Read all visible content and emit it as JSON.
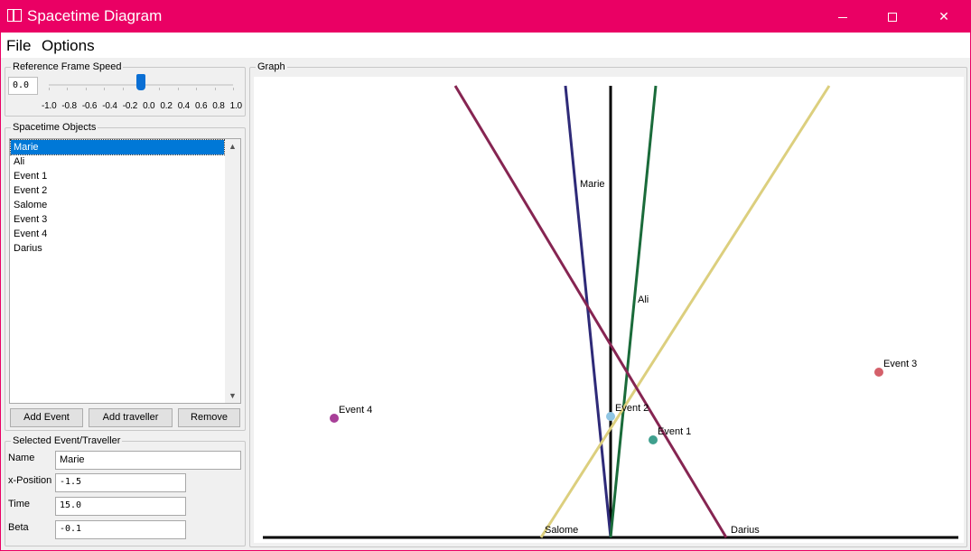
{
  "window": {
    "title": "Spacetime Diagram"
  },
  "menu": {
    "file": "File",
    "options": "Options"
  },
  "speed": {
    "title": "Reference Frame Speed",
    "value": "0.0",
    "slider_value": 0.0,
    "slider_min": -1.0,
    "slider_max": 1.0,
    "tick_labels": [
      "-1.0",
      "-0.8",
      "-0.6",
      "-0.4",
      "-0.2",
      "0.0",
      "0.2",
      "0.4",
      "0.6",
      "0.8",
      "1.0"
    ]
  },
  "objects": {
    "title": "Spacetime Objects",
    "items": [
      "Marie",
      "Ali",
      "Event 1",
      "Event 2",
      "Salome",
      "Event 3",
      "Event 4",
      "Darius"
    ],
    "selected_index": 0,
    "add_event": "Add Event",
    "add_traveller": "Add traveller",
    "remove": "Remove"
  },
  "selected": {
    "title": "Selected Event/Traveller",
    "name_label": "Name",
    "name_value": "Marie",
    "x_label": "x-Position",
    "x_value": "-1.5",
    "time_label": "Time",
    "time_value": "15.0",
    "beta_label": "Beta",
    "beta_value": "-0.1"
  },
  "graph": {
    "title": "Graph",
    "travellers": [
      {
        "name": "Marie",
        "color": "#2e2a78"
      },
      {
        "name": "Ali",
        "color": "#1a6b3a"
      },
      {
        "name": "Salome",
        "color": "#dccf7e"
      },
      {
        "name": "Darius",
        "color": "#862552"
      }
    ],
    "events": [
      {
        "name": "Event 1",
        "color": "#3fa08e"
      },
      {
        "name": "Event 2",
        "color": "#8fc5e3"
      },
      {
        "name": "Event 3",
        "color": "#d4606a"
      },
      {
        "name": "Event 4",
        "color": "#a83f98"
      }
    ]
  }
}
